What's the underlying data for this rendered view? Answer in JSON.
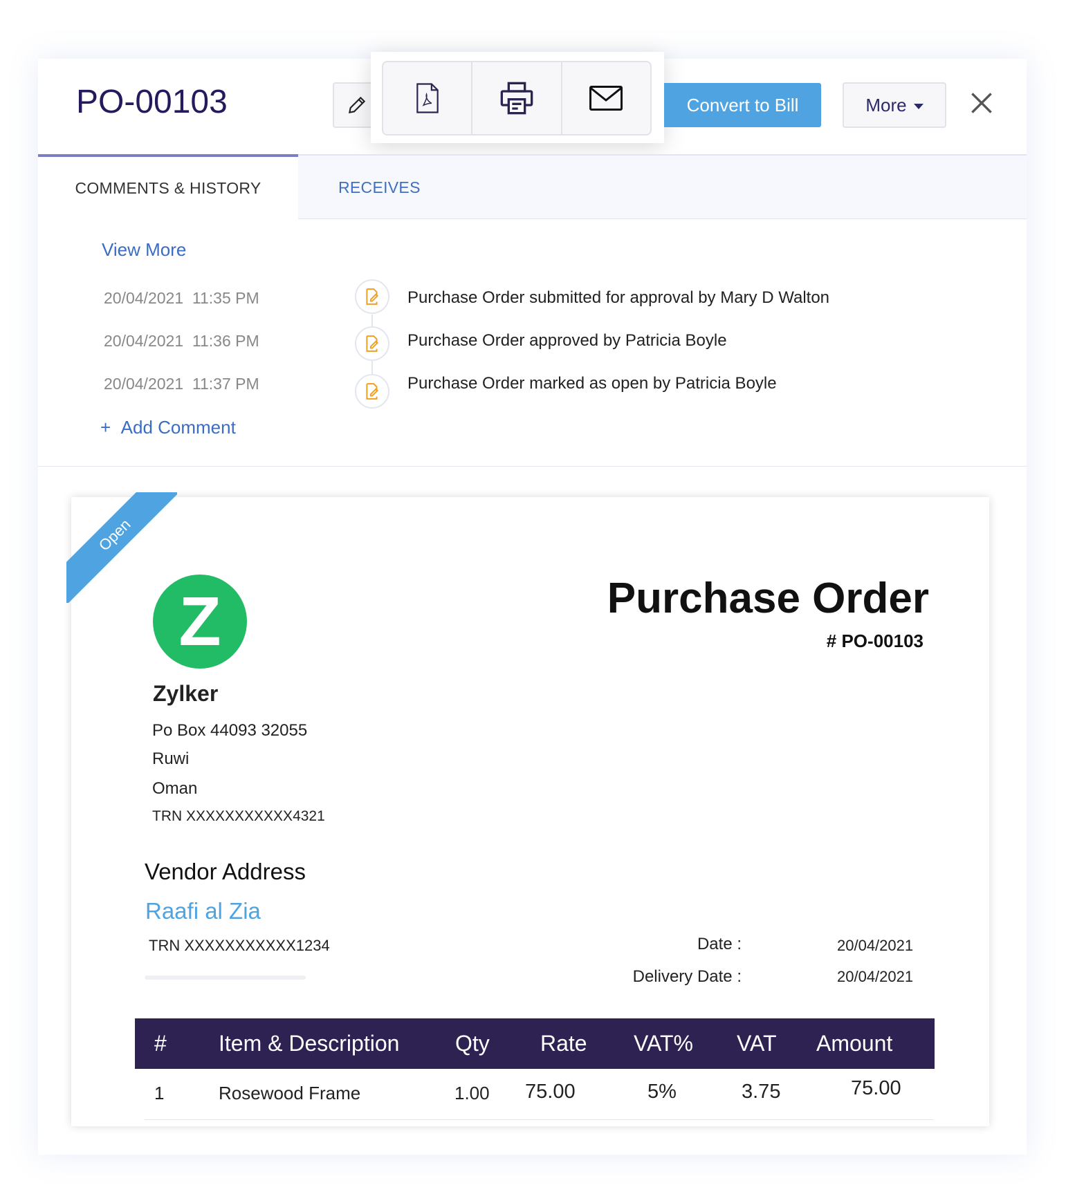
{
  "header": {
    "title": "PO-00103",
    "convert_label": "Convert to Bill",
    "more_label": "More",
    "icons": [
      "pencil-icon",
      "pdf-icon",
      "printer-icon",
      "mail-icon",
      "close-icon"
    ]
  },
  "tabs": [
    {
      "label": "COMMENTS & HISTORY",
      "active": true
    },
    {
      "label": "RECEIVES",
      "active": false
    }
  ],
  "history": {
    "view_more": "View More",
    "entries": [
      {
        "date": "20/04/2021",
        "time": "11:35 PM",
        "text": "Purchase Order submitted for approval by Mary D Walton"
      },
      {
        "date": "20/04/2021",
        "time": "11:36 PM",
        "text": "Purchase Order approved by Patricia Boyle"
      },
      {
        "date": "20/04/2021",
        "time": "11:37 PM",
        "text": "Purchase Order marked as open by Patricia Boyle"
      }
    ],
    "add_comment": "Add Comment"
  },
  "document": {
    "status": "Open",
    "logo_letter": "Z",
    "company": "Zylker",
    "address": [
      "Po Box 44093 32055",
      "Ruwi",
      "Oman"
    ],
    "company_trn": "TRN XXXXXXXXXXX4321",
    "heading": "Purchase Order",
    "number": "# PO-00103",
    "vendor_label": "Vendor Address",
    "vendor_name": "Raafi al Zia",
    "vendor_trn": "TRN XXXXXXXXXXX1234",
    "date_label": "Date :",
    "date_value": "20/04/2021",
    "delivery_label": "Delivery Date :",
    "delivery_value": "20/04/2021",
    "table": {
      "headers": [
        "#",
        "Item & Description",
        "Qty",
        "Rate",
        "VAT%",
        "VAT",
        "Amount"
      ],
      "rows": [
        [
          "1",
          "Rosewood Frame",
          "1.00",
          "75.00",
          "5%",
          "3.75",
          "75.00"
        ]
      ]
    }
  },
  "colors": {
    "accent": "#4fa3e0",
    "table_header": "#2e2252",
    "title": "#231b5c",
    "link": "#3b6cc4",
    "logo": "#22bb66",
    "history_icon": "#f0a020"
  }
}
